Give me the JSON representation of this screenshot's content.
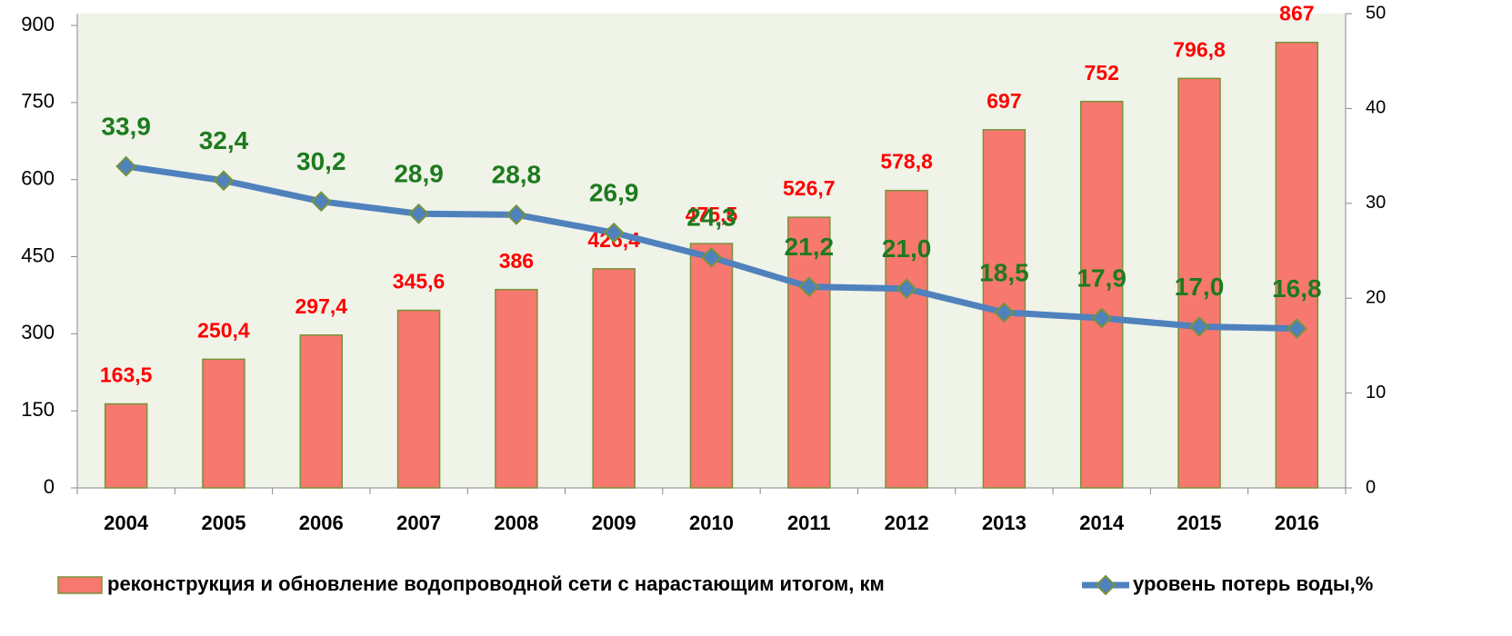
{
  "chart_data": {
    "type": "bar_line",
    "categories": [
      "2004",
      "2005",
      "2006",
      "2007",
      "2008",
      "2009",
      "2010",
      "2011",
      "2012",
      "2013",
      "2014",
      "2015",
      "2016"
    ],
    "series": [
      {
        "name": "реконструкция и обновление водопроводной сети с нарастающим итогом, км",
        "type": "bar",
        "color": "#f7786f",
        "values": [
          163.5,
          250.4,
          297.4,
          345.6,
          386,
          426.4,
          475.5,
          526.7,
          578.8,
          697,
          752,
          796.8,
          867
        ],
        "value_labels": [
          "163,5",
          "250,4",
          "297,4",
          "345,6",
          "386",
          "426,4",
          "475,5",
          "526,7",
          "578,8",
          "697",
          "752",
          "796,8",
          "867"
        ]
      },
      {
        "name": "уровень потерь воды,%",
        "type": "line",
        "axis": "y2",
        "color": "#4f81bd",
        "values": [
          33.9,
          32.4,
          30.2,
          28.9,
          28.8,
          26.9,
          24.3,
          21.2,
          21.0,
          18.5,
          17.9,
          17.0,
          16.8
        ],
        "value_labels": [
          "33,9",
          "32,4",
          "30,2",
          "28,9",
          "28,8",
          "26,9",
          "24,3",
          "21,2",
          "21,0",
          "18,5",
          "17,9",
          "17,0",
          "16,8"
        ]
      }
    ],
    "ylim": [
      0,
      923
    ],
    "yticks": [
      0,
      150,
      300,
      450,
      600,
      750,
      900
    ],
    "y2lim": [
      0,
      50
    ],
    "y2ticks": [
      0,
      10,
      20,
      30,
      40,
      50
    ],
    "legend": "bottom"
  }
}
